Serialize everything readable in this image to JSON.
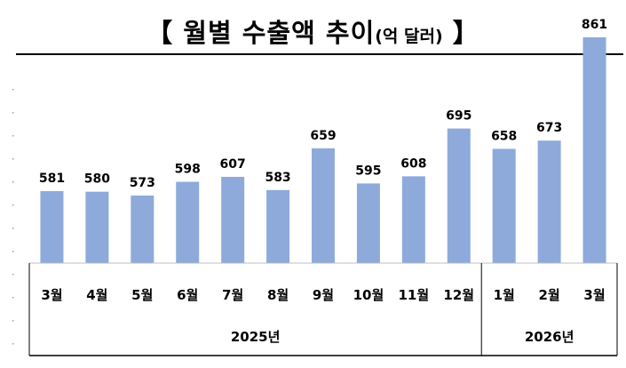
{
  "title": {
    "bracket_open": "【",
    "main": "월별 수출액 추이",
    "unit": "(억 달러)",
    "bracket_close": "】"
  },
  "chart_data": {
    "type": "bar",
    "title": "월별 수출액 추이(억 달러)",
    "categories": [
      "3월",
      "4월",
      "5월",
      "6월",
      "7월",
      "8월",
      "9월",
      "10월",
      "11월",
      "12월",
      "1월",
      "2월",
      "3월"
    ],
    "values": [
      581,
      580,
      573,
      598,
      607,
      583,
      659,
      595,
      608,
      695,
      658,
      673,
      861
    ],
    "year_groups": [
      {
        "label": "2025년",
        "count": 10
      },
      {
        "label": "2026년",
        "count": 3
      }
    ],
    "ylim": [
      0,
      900
    ],
    "data_labels": true,
    "grid": false,
    "bar_color": "#8eaadb"
  }
}
